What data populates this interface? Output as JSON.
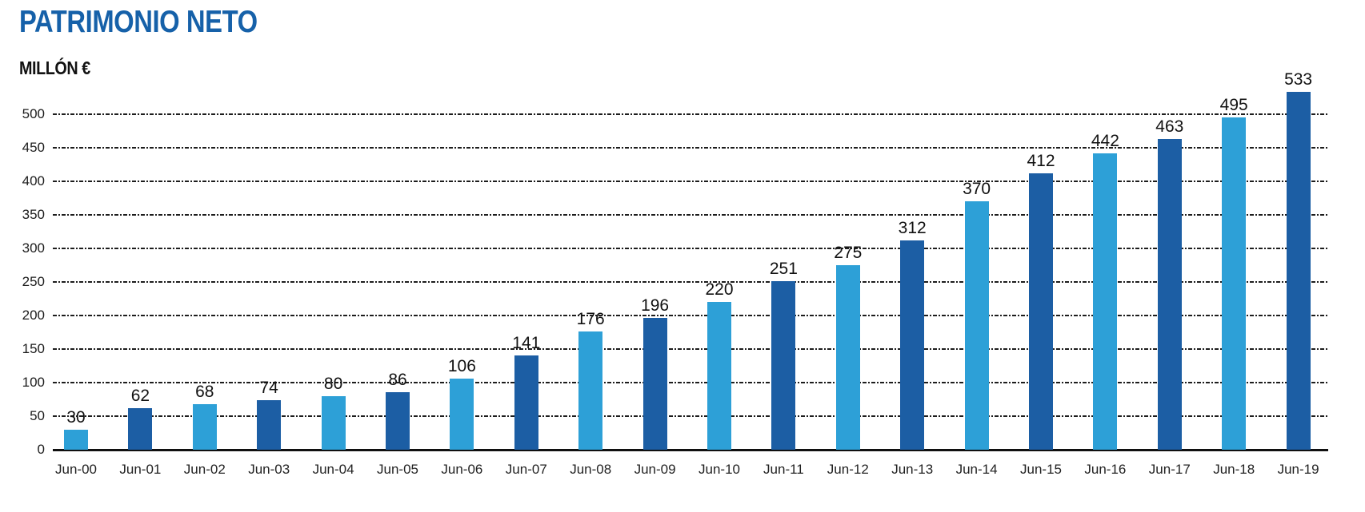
{
  "header": {
    "title": "PATRIMONIO NETO",
    "subtitle": "MILLÓN €"
  },
  "colors": {
    "title": "#1661A9",
    "bar_light": "#2DA0D7",
    "bar_dark": "#1C5EA4",
    "grid": "#1d1d1d",
    "axis": "#101010",
    "value_label": "#111111",
    "tick_label": "#1c1c1c"
  },
  "chart_data": {
    "type": "bar",
    "title": "PATRIMONIO NETO",
    "ylabel": "MILLÓN €",
    "xlabel": "",
    "categories": [
      "Jun-00",
      "Jun-01",
      "Jun-02",
      "Jun-03",
      "Jun-04",
      "Jun-05",
      "Jun-06",
      "Jun-07",
      "Jun-08",
      "Jun-09",
      "Jun-10",
      "Jun-11",
      "Jun-12",
      "Jun-13",
      "Jun-14",
      "Jun-15",
      "Jun-16",
      "Jun-17",
      "Jun-18",
      "Jun-19"
    ],
    "values": [
      30,
      62,
      68,
      74,
      80,
      86,
      106,
      141,
      176,
      196,
      220,
      251,
      275,
      312,
      370,
      412,
      442,
      463,
      495,
      533
    ],
    "bar_color_pattern": [
      "#2DA0D7",
      "#1C5EA4"
    ],
    "ylim": [
      0,
      500
    ],
    "ytick_step": 50,
    "yticks": [
      0,
      50,
      100,
      150,
      200,
      250,
      300,
      350,
      400,
      450,
      500
    ],
    "grid": "dashed horizontal",
    "legend": "none",
    "value_labels": "above bars"
  }
}
